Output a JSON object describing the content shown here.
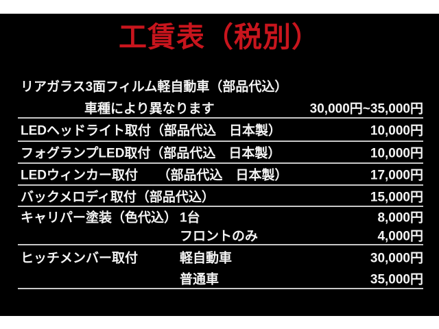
{
  "header": {
    "title": "工賃表（税別）"
  },
  "colors": {
    "page_margin": "#ffffff",
    "board_background": "#000000",
    "title_text": "#c8151d",
    "body_text": "#f4f4f4",
    "divider_line": "#c9c9c9"
  },
  "table": {
    "rows": [
      {
        "label": "リアガラス3面フィルム軽自動車（部品代込）",
        "sub": "",
        "price": ""
      },
      {
        "label": "",
        "sub": "車種により異なります",
        "price": "30,000円~35,000円"
      },
      {
        "label": "LEDヘッドライト取付（部品代込　日本製）",
        "sub": "",
        "price": "10,000円"
      },
      {
        "label": "フォグランプLED取付（部品代込　日本製）",
        "sub": "",
        "price": "10,000円"
      },
      {
        "label": "LEDウィンカー取付　　（部品代込　日本製）",
        "sub": "",
        "price": "17,000円"
      },
      {
        "label": "バックメロディ取付（部品代込）",
        "sub": "",
        "price": "15,000円"
      },
      {
        "label": "キャリパー塗装（色代込）",
        "sub": "1台",
        "price": "8,000円"
      },
      {
        "label": "",
        "sub": "フロントのみ",
        "price": "4,000円"
      },
      {
        "label": "ヒッチメンバー取付",
        "sub": "軽自動車",
        "price": "30,000円"
      },
      {
        "label": "",
        "sub": "普通車",
        "price": "35,000円"
      }
    ]
  }
}
